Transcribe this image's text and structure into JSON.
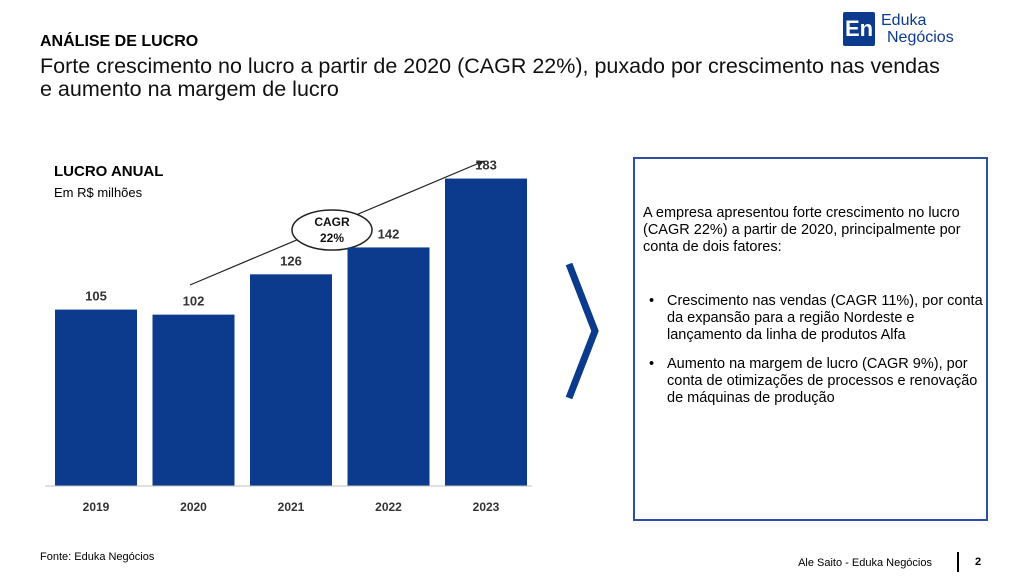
{
  "header": {
    "label": "ANÁLISE DE LUCRO",
    "headline": "Forte crescimento no lucro a partir de 2020 (CAGR 22%), puxado por crescimento nas vendas e aumento na margem de lucro"
  },
  "logo": {
    "mark": "En",
    "line1": "Eduka",
    "line2": "Negócios"
  },
  "chart_data": {
    "type": "bar",
    "title": "LUCRO ANUAL",
    "subtitle": "Em R$ milhões",
    "categories": [
      "2019",
      "2020",
      "2021",
      "2022",
      "2023"
    ],
    "values": [
      105,
      102,
      126,
      142,
      183
    ],
    "ylim": [
      0,
      200
    ],
    "grid": false,
    "bar_color": "#0c3a8c",
    "annotation": {
      "line1": "CAGR",
      "line2": "22%"
    }
  },
  "panel": {
    "intro": "A empresa apresentou forte crescimento no lucro (CAGR 22%) a partir de 2020, principalmente por conta de dois fatores:",
    "bullet_glyph": "•",
    "bullets": [
      "Crescimento nas vendas (CAGR 11%), por conta da expansão para a região Nordeste e lançamento da linha de produtos Alfa",
      "Aumento na margem de lucro (CAGR 9%), por conta de otimizações de processos e renovação de máquinas de produção"
    ],
    "border_color": "#2c4ea6"
  },
  "footer": {
    "source": "Fonte: Eduka Negócios",
    "author": "Ale Saito - Eduka Negócios",
    "page": "2"
  }
}
